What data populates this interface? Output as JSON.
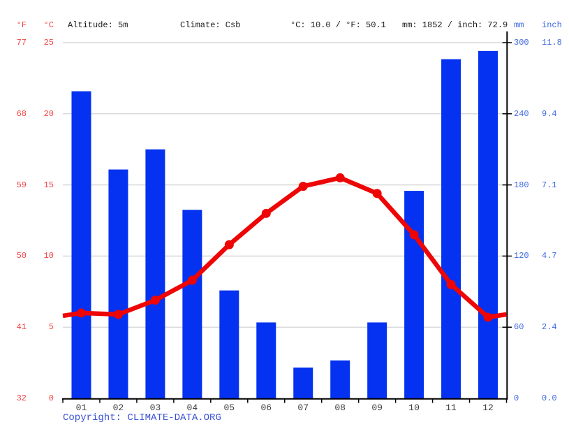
{
  "header": {
    "f_label": "°F",
    "c_label": "°C",
    "altitude": "Altitude: 5m",
    "climate": "Climate: Csb",
    "temp_summary": "°C: 10.0 / °F: 50.1",
    "precip_summary": "mm: 1852 / inch: 72.9",
    "mm_label": "mm",
    "inch_label": "inch"
  },
  "footer": {
    "copyright_label": "Copyright: ",
    "link_text": "CLIMATE-DATA.ORG"
  },
  "colors": {
    "bar_blue": "#0432f0",
    "line_red": "#ee0505",
    "axis_label_red": "#f04545",
    "axis_label_blue": "#4169e1",
    "grid_gray": "#cfcfcf",
    "axis_black": "#000000",
    "month_label": "#3d3d3d",
    "copyright_blue": "#3a51d6"
  },
  "chart_data": {
    "type": "bar+line combo climate chart",
    "categories": [
      "01",
      "02",
      "03",
      "04",
      "05",
      "06",
      "07",
      "08",
      "09",
      "10",
      "11",
      "12"
    ],
    "series": [
      {
        "name": "Precipitation",
        "type": "bar",
        "unit": "mm",
        "values": [
          259,
          193,
          210,
          159,
          91,
          64,
          26,
          32,
          64,
          175,
          286,
          293
        ]
      },
      {
        "name": "Temperature",
        "type": "line",
        "unit": "°C",
        "values": [
          6.0,
          5.9,
          6.9,
          8.3,
          10.8,
          13.0,
          14.9,
          15.5,
          14.4,
          11.5,
          8.0,
          5.7
        ],
        "edge_left": 5.8,
        "edge_right": 5.9
      }
    ],
    "left_axis": {
      "f_ticks": [
        "77",
        "68",
        "59",
        "50",
        "41",
        "32"
      ],
      "c_ticks": [
        "25",
        "20",
        "15",
        "10",
        "5",
        "0"
      ],
      "c_values": [
        25,
        20,
        15,
        10,
        5,
        0
      ],
      "range_c": [
        0,
        25
      ]
    },
    "right_axis": {
      "mm_ticks": [
        "300",
        "240",
        "180",
        "120",
        "60",
        "0"
      ],
      "inch_ticks": [
        "11.8",
        "9.4",
        "7.1",
        "4.7",
        "2.4",
        "0.0"
      ],
      "mm_values": [
        300,
        240,
        180,
        120,
        60,
        0
      ],
      "range_mm": [
        0,
        300
      ]
    },
    "grid": "horizontal gridlines at 5°C / 60mm steps",
    "annual_mean_temp_c": 10.0,
    "annual_precip_mm": 1852
  }
}
